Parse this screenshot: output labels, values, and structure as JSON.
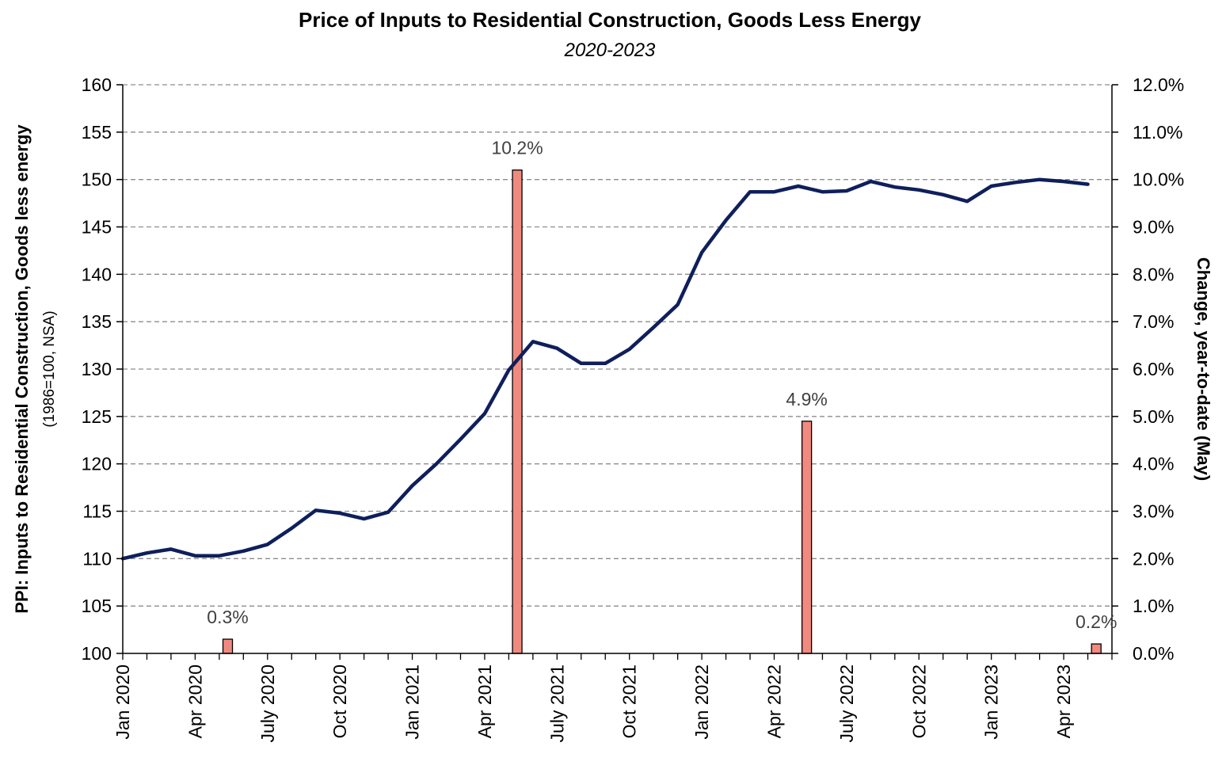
{
  "chart_data": {
    "type": "bar+line",
    "title": "Price of Inputs to Residential Construction, Goods Less Energy",
    "subtitle": "2020-2023",
    "ylabel": "PPI: Inputs to Residential Construction, Goods less energy",
    "ylabel_sub": "(1986=100, NSA)",
    "y2label": "Change, year-to-date (May)",
    "ylim": [
      100,
      160
    ],
    "y_ticks": [
      100,
      105,
      110,
      115,
      120,
      125,
      130,
      135,
      140,
      145,
      150,
      155,
      160
    ],
    "y2lim": [
      0,
      12
    ],
    "y2_ticks": [
      "0.0%",
      "1.0%",
      "2.0%",
      "3.0%",
      "4.0%",
      "5.0%",
      "6.0%",
      "7.0%",
      "8.0%",
      "9.0%",
      "10.0%",
      "11.0%",
      "12.0%"
    ],
    "x_tick_labels": [
      "Jan 2020",
      "Apr 2020",
      "July 2020",
      "Oct 2020",
      "Jan 2021",
      "Apr 2021",
      "July 2021",
      "Oct 2021",
      "Jan 2022",
      "Apr 2022",
      "July 2022",
      "Oct 2022",
      "Jan 2023",
      "Apr 2023"
    ],
    "x": [
      "Jan 2020",
      "Feb 2020",
      "Mar 2020",
      "Apr 2020",
      "May 2020",
      "Jun 2020",
      "Jul 2020",
      "Aug 2020",
      "Sep 2020",
      "Oct 2020",
      "Nov 2020",
      "Dec 2020",
      "Jan 2021",
      "Feb 2021",
      "Mar 2021",
      "Apr 2021",
      "May 2021",
      "Jun 2021",
      "Jul 2021",
      "Aug 2021",
      "Sep 2021",
      "Oct 2021",
      "Nov 2021",
      "Dec 2021",
      "Jan 2022",
      "Feb 2022",
      "Mar 2022",
      "Apr 2022",
      "May 2022",
      "Jun 2022",
      "Jul 2022",
      "Aug 2022",
      "Sep 2022",
      "Oct 2022",
      "Nov 2022",
      "Dec 2022",
      "Jan 2023",
      "Feb 2023",
      "Mar 2023",
      "Apr 2023",
      "May 2023"
    ],
    "series": [
      {
        "type": "line",
        "axis": "left",
        "color": "#0f1f5c",
        "values": [
          110.0,
          110.6,
          111.0,
          110.3,
          110.3,
          110.8,
          111.5,
          113.2,
          115.1,
          114.8,
          114.2,
          114.9,
          117.7,
          120.0,
          122.6,
          125.3,
          129.9,
          132.9,
          132.2,
          130.6,
          130.6,
          132.1,
          134.4,
          136.8,
          142.3,
          145.7,
          148.7,
          148.7,
          149.3,
          148.7,
          148.8,
          149.8,
          149.2,
          148.9,
          148.4,
          147.7,
          149.3,
          149.7,
          150.0,
          149.8,
          149.5
        ]
      },
      {
        "type": "bar",
        "axis": "right",
        "color": "#f08a80",
        "x": [
          "May 2020",
          "May 2021",
          "May 2022",
          "May 2023"
        ],
        "values": [
          0.3,
          10.2,
          4.9,
          0.2
        ],
        "labels": [
          "0.3%",
          "10.2%",
          "4.9%",
          "0.2%"
        ]
      }
    ],
    "grid": "horizontal dashed"
  }
}
